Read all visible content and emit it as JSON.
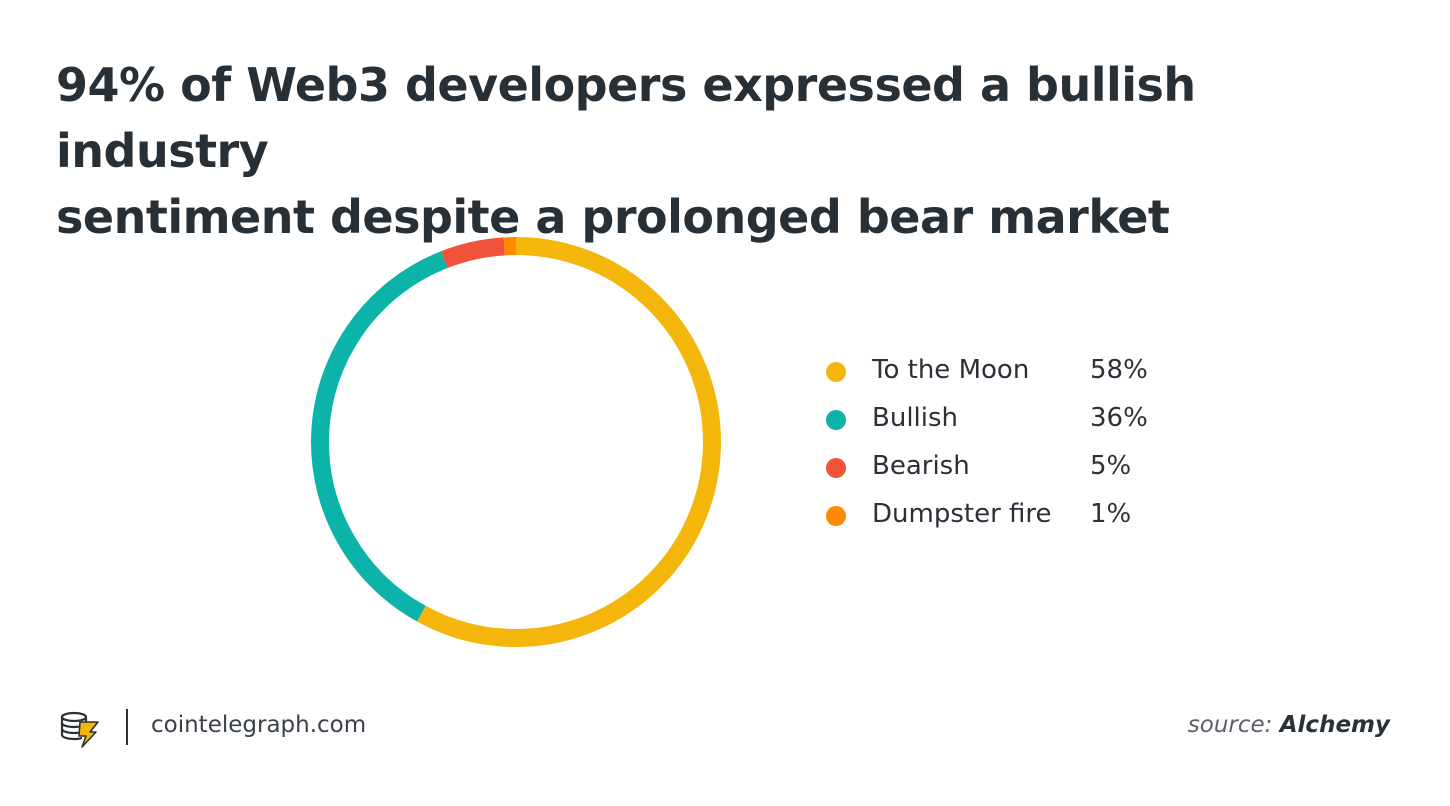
{
  "header": {
    "title_line1": "94% of Web3 developers expressed a bullish industry",
    "title_line2": "sentiment despite a prolonged bear market"
  },
  "chart_data": {
    "type": "pie",
    "style": "donut",
    "title": "94% of Web3 developers expressed a bullish industry sentiment despite a prolonged bear market",
    "legend_placement": "right",
    "slices": [
      {
        "label": "To the Moon",
        "value": 58,
        "display": "58%",
        "color": "#F4B60A"
      },
      {
        "label": "Bullish",
        "value": 36,
        "display": "36%",
        "color": "#0BB3A9"
      },
      {
        "label": "Bearish",
        "value": 5,
        "display": "5%",
        "color": "#F0523A"
      },
      {
        "label": "Dumpster fire",
        "value": 1,
        "display": "1%",
        "color": "#FF8A00"
      }
    ]
  },
  "footer": {
    "site": "cointelegraph.com",
    "source_prefix": "source: ",
    "source_name": "Alchemy"
  },
  "icons": {
    "brand_logo": "cointelegraph-logo-icon"
  }
}
